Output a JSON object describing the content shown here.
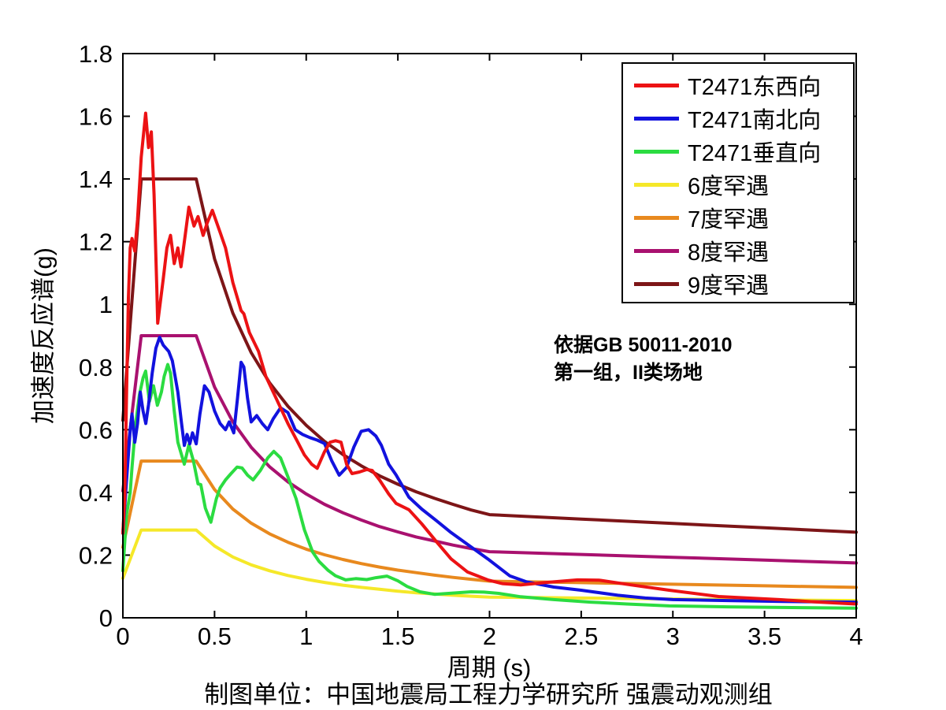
{
  "chart_data": {
    "type": "line",
    "title": "",
    "xlabel": "周期 (s)",
    "ylabel": "加速度反应谱(g)",
    "caption": "制图单位：中国地震局工程力学研究所 强震动观测组",
    "annotation": [
      "依据GB 50011-2010",
      "第一组，II类场地"
    ],
    "xlim": [
      0,
      4
    ],
    "ylim": [
      0,
      1.8
    ],
    "xticks": [
      "0",
      "0.5",
      "1",
      "1.5",
      "2",
      "2.5",
      "3",
      "3.5",
      "4"
    ],
    "yticks": [
      "0",
      "0.2",
      "0.4",
      "0.6",
      "0.8",
      "1",
      "1.2",
      "1.4",
      "1.6",
      "1.8"
    ],
    "grid": false,
    "legend_position": "upper right",
    "axis_color": "#000000",
    "background_color": "#ffffff",
    "series": [
      {
        "name": "T2471东西向",
        "color": "#ec1214",
        "z": 7,
        "points": [
          [
            0,
            0.27
          ],
          [
            0.01,
            0.38
          ],
          [
            0.02,
            0.72
          ],
          [
            0.03,
            1.02
          ],
          [
            0.04,
            1.18
          ],
          [
            0.05,
            1.21
          ],
          [
            0.065,
            1.17
          ],
          [
            0.08,
            1.27
          ],
          [
            0.1,
            1.47
          ],
          [
            0.124,
            1.61
          ],
          [
            0.14,
            1.5
          ],
          [
            0.155,
            1.55
          ],
          [
            0.17,
            1.35
          ],
          [
            0.185,
            1.05
          ],
          [
            0.19,
            0.94
          ],
          [
            0.22,
            1.08
          ],
          [
            0.24,
            1.18
          ],
          [
            0.26,
            1.22
          ],
          [
            0.28,
            1.13
          ],
          [
            0.3,
            1.18
          ],
          [
            0.317,
            1.12
          ],
          [
            0.34,
            1.22
          ],
          [
            0.36,
            1.31
          ],
          [
            0.388,
            1.25
          ],
          [
            0.41,
            1.28
          ],
          [
            0.438,
            1.22
          ],
          [
            0.46,
            1.26
          ],
          [
            0.488,
            1.3
          ],
          [
            0.53,
            1.23
          ],
          [
            0.56,
            1.18
          ],
          [
            0.6,
            1.07
          ],
          [
            0.645,
            0.98
          ],
          [
            0.66,
            0.97
          ],
          [
            0.69,
            0.91
          ],
          [
            0.74,
            0.85
          ],
          [
            0.78,
            0.77
          ],
          [
            0.82,
            0.72
          ],
          [
            0.86,
            0.67
          ],
          [
            0.9,
            0.62
          ],
          [
            0.95,
            0.565
          ],
          [
            0.99,
            0.52
          ],
          [
            1.03,
            0.49
          ],
          [
            1.06,
            0.477
          ],
          [
            1.1,
            0.53
          ],
          [
            1.13,
            0.56
          ],
          [
            1.16,
            0.565
          ],
          [
            1.19,
            0.56
          ],
          [
            1.22,
            0.49
          ],
          [
            1.25,
            0.46
          ],
          [
            1.29,
            0.465
          ],
          [
            1.33,
            0.473
          ],
          [
            1.36,
            0.47
          ],
          [
            1.4,
            0.44
          ],
          [
            1.45,
            0.395
          ],
          [
            1.49,
            0.365
          ],
          [
            1.56,
            0.345
          ],
          [
            1.63,
            0.3
          ],
          [
            1.71,
            0.243
          ],
          [
            1.79,
            0.188
          ],
          [
            1.88,
            0.146
          ],
          [
            1.99,
            0.121
          ],
          [
            2.07,
            0.109
          ],
          [
            2.17,
            0.105
          ],
          [
            2.31,
            0.113
          ],
          [
            2.48,
            0.121
          ],
          [
            2.6,
            0.12
          ],
          [
            2.77,
            0.105
          ],
          [
            2.98,
            0.088
          ],
          [
            3.25,
            0.068
          ],
          [
            3.58,
            0.058
          ],
          [
            3.8,
            0.05
          ],
          [
            4.0,
            0.044
          ]
        ]
      },
      {
        "name": "T2471南北向",
        "color": "#1212de",
        "z": 6,
        "points": [
          [
            0,
            0.27
          ],
          [
            0.02,
            0.44
          ],
          [
            0.04,
            0.6
          ],
          [
            0.05,
            0.65
          ],
          [
            0.065,
            0.56
          ],
          [
            0.08,
            0.62
          ],
          [
            0.095,
            0.72
          ],
          [
            0.11,
            0.66
          ],
          [
            0.125,
            0.62
          ],
          [
            0.14,
            0.68
          ],
          [
            0.16,
            0.78
          ],
          [
            0.18,
            0.86
          ],
          [
            0.2,
            0.895
          ],
          [
            0.22,
            0.87
          ],
          [
            0.25,
            0.85
          ],
          [
            0.27,
            0.82
          ],
          [
            0.3,
            0.72
          ],
          [
            0.32,
            0.62
          ],
          [
            0.335,
            0.55
          ],
          [
            0.35,
            0.585
          ],
          [
            0.365,
            0.555
          ],
          [
            0.38,
            0.59
          ],
          [
            0.4,
            0.555
          ],
          [
            0.42,
            0.65
          ],
          [
            0.445,
            0.74
          ],
          [
            0.47,
            0.72
          ],
          [
            0.5,
            0.66
          ],
          [
            0.53,
            0.62
          ],
          [
            0.56,
            0.6
          ],
          [
            0.58,
            0.625
          ],
          [
            0.605,
            0.59
          ],
          [
            0.625,
            0.7
          ],
          [
            0.645,
            0.815
          ],
          [
            0.66,
            0.8
          ],
          [
            0.68,
            0.7
          ],
          [
            0.7,
            0.625
          ],
          [
            0.73,
            0.645
          ],
          [
            0.76,
            0.62
          ],
          [
            0.79,
            0.6
          ],
          [
            0.82,
            0.635
          ],
          [
            0.86,
            0.67
          ],
          [
            0.9,
            0.655
          ],
          [
            0.94,
            0.6
          ],
          [
            0.98,
            0.585
          ],
          [
            1.02,
            0.575
          ],
          [
            1.06,
            0.567
          ],
          [
            1.1,
            0.556
          ],
          [
            1.14,
            0.5
          ],
          [
            1.18,
            0.455
          ],
          [
            1.22,
            0.48
          ],
          [
            1.26,
            0.545
          ],
          [
            1.3,
            0.595
          ],
          [
            1.34,
            0.6
          ],
          [
            1.38,
            0.58
          ],
          [
            1.41,
            0.55
          ],
          [
            1.45,
            0.49
          ],
          [
            1.49,
            0.456
          ],
          [
            1.56,
            0.385
          ],
          [
            1.63,
            0.347
          ],
          [
            1.71,
            0.31
          ],
          [
            1.79,
            0.272
          ],
          [
            1.88,
            0.234
          ],
          [
            1.99,
            0.188
          ],
          [
            2.11,
            0.134
          ],
          [
            2.2,
            0.115
          ],
          [
            2.35,
            0.098
          ],
          [
            2.5,
            0.088
          ],
          [
            2.7,
            0.072
          ],
          [
            2.85,
            0.063
          ],
          [
            3.0,
            0.058
          ],
          [
            3.3,
            0.055
          ],
          [
            3.6,
            0.052
          ],
          [
            4.0,
            0.05
          ]
        ]
      },
      {
        "name": "T2471垂直向",
        "color": "#2bdc41",
        "z": 5,
        "points": [
          [
            0,
            0.15
          ],
          [
            0.02,
            0.33
          ],
          [
            0.04,
            0.4
          ],
          [
            0.05,
            0.48
          ],
          [
            0.07,
            0.62
          ],
          [
            0.09,
            0.71
          ],
          [
            0.11,
            0.765
          ],
          [
            0.124,
            0.787
          ],
          [
            0.145,
            0.69
          ],
          [
            0.167,
            0.74
          ],
          [
            0.188,
            0.678
          ],
          [
            0.21,
            0.72
          ],
          [
            0.225,
            0.77
          ],
          [
            0.245,
            0.808
          ],
          [
            0.26,
            0.78
          ],
          [
            0.28,
            0.66
          ],
          [
            0.3,
            0.56
          ],
          [
            0.32,
            0.52
          ],
          [
            0.335,
            0.49
          ],
          [
            0.36,
            0.552
          ],
          [
            0.385,
            0.5
          ],
          [
            0.41,
            0.427
          ],
          [
            0.425,
            0.425
          ],
          [
            0.45,
            0.35
          ],
          [
            0.48,
            0.305
          ],
          [
            0.51,
            0.38
          ],
          [
            0.53,
            0.414
          ],
          [
            0.56,
            0.44
          ],
          [
            0.59,
            0.46
          ],
          [
            0.623,
            0.481
          ],
          [
            0.65,
            0.478
          ],
          [
            0.68,
            0.455
          ],
          [
            0.71,
            0.44
          ],
          [
            0.75,
            0.47
          ],
          [
            0.79,
            0.51
          ],
          [
            0.823,
            0.531
          ],
          [
            0.86,
            0.51
          ],
          [
            0.9,
            0.45
          ],
          [
            0.945,
            0.38
          ],
          [
            0.99,
            0.281
          ],
          [
            1.035,
            0.21
          ],
          [
            1.07,
            0.18
          ],
          [
            1.12,
            0.151
          ],
          [
            1.16,
            0.134
          ],
          [
            1.215,
            0.121
          ],
          [
            1.27,
            0.125
          ],
          [
            1.33,
            0.122
          ],
          [
            1.38,
            0.128
          ],
          [
            1.44,
            0.133
          ],
          [
            1.5,
            0.118
          ],
          [
            1.55,
            0.1
          ],
          [
            1.62,
            0.083
          ],
          [
            1.7,
            0.075
          ],
          [
            1.8,
            0.079
          ],
          [
            1.9,
            0.083
          ],
          [
            1.97,
            0.082
          ],
          [
            2.05,
            0.078
          ],
          [
            2.17,
            0.067
          ],
          [
            2.35,
            0.058
          ],
          [
            2.55,
            0.05
          ],
          [
            2.75,
            0.044
          ],
          [
            2.98,
            0.038
          ],
          [
            3.3,
            0.035
          ],
          [
            3.6,
            0.033
          ],
          [
            4.0,
            0.031
          ]
        ]
      },
      {
        "name": "6度罕遇",
        "color": "#f5e829",
        "z": 1,
        "points": [
          [
            0,
            0.126
          ],
          [
            0.1,
            0.28
          ],
          [
            0.4,
            0.28
          ],
          [
            0.5,
            0.229
          ],
          [
            0.6,
            0.194
          ],
          [
            0.7,
            0.169
          ],
          [
            0.8,
            0.15
          ],
          [
            0.9,
            0.135
          ],
          [
            1.0,
            0.123
          ],
          [
            1.1,
            0.113
          ],
          [
            1.2,
            0.104
          ],
          [
            1.3,
            0.097
          ],
          [
            1.4,
            0.091
          ],
          [
            1.5,
            0.085
          ],
          [
            1.6,
            0.08
          ],
          [
            1.7,
            0.076
          ],
          [
            1.8,
            0.072
          ],
          [
            1.9,
            0.069
          ],
          [
            2.0,
            0.066
          ],
          [
            2.5,
            0.063
          ],
          [
            3.0,
            0.06
          ],
          [
            3.5,
            0.057
          ],
          [
            4.0,
            0.055
          ]
        ]
      },
      {
        "name": "7度罕遇",
        "color": "#e8891e",
        "z": 2,
        "points": [
          [
            0,
            0.225
          ],
          [
            0.1,
            0.5
          ],
          [
            0.4,
            0.5
          ],
          [
            0.5,
            0.409
          ],
          [
            0.6,
            0.347
          ],
          [
            0.7,
            0.302
          ],
          [
            0.8,
            0.268
          ],
          [
            0.9,
            0.241
          ],
          [
            1.0,
            0.219
          ],
          [
            1.1,
            0.201
          ],
          [
            1.2,
            0.186
          ],
          [
            1.3,
            0.173
          ],
          [
            1.4,
            0.162
          ],
          [
            1.5,
            0.152
          ],
          [
            1.6,
            0.144
          ],
          [
            1.7,
            0.136
          ],
          [
            1.8,
            0.129
          ],
          [
            1.9,
            0.123
          ],
          [
            2.0,
            0.117
          ],
          [
            2.5,
            0.112
          ],
          [
            3.0,
            0.107
          ],
          [
            3.5,
            0.102
          ],
          [
            4.0,
            0.097
          ]
        ]
      },
      {
        "name": "8度罕遇",
        "color": "#a9116f",
        "z": 3,
        "points": [
          [
            0,
            0.405
          ],
          [
            0.1,
            0.9
          ],
          [
            0.4,
            0.9
          ],
          [
            0.5,
            0.736
          ],
          [
            0.6,
            0.625
          ],
          [
            0.7,
            0.544
          ],
          [
            0.8,
            0.482
          ],
          [
            0.9,
            0.434
          ],
          [
            1.0,
            0.395
          ],
          [
            1.1,
            0.362
          ],
          [
            1.2,
            0.335
          ],
          [
            1.3,
            0.312
          ],
          [
            1.4,
            0.291
          ],
          [
            1.5,
            0.274
          ],
          [
            1.6,
            0.258
          ],
          [
            1.7,
            0.245
          ],
          [
            1.8,
            0.232
          ],
          [
            1.9,
            0.221
          ],
          [
            2.0,
            0.211
          ],
          [
            2.5,
            0.202
          ],
          [
            3.0,
            0.193
          ],
          [
            3.5,
            0.184
          ],
          [
            4.0,
            0.175
          ]
        ]
      },
      {
        "name": "9度罕遇",
        "color": "#7d1517",
        "z": 4,
        "points": [
          [
            0,
            0.63
          ],
          [
            0.1,
            1.4
          ],
          [
            0.4,
            1.4
          ],
          [
            0.5,
            1.145
          ],
          [
            0.6,
            0.972
          ],
          [
            0.7,
            0.846
          ],
          [
            0.8,
            0.75
          ],
          [
            0.9,
            0.675
          ],
          [
            1.0,
            0.614
          ],
          [
            1.1,
            0.563
          ],
          [
            1.2,
            0.521
          ],
          [
            1.3,
            0.485
          ],
          [
            1.4,
            0.453
          ],
          [
            1.5,
            0.426
          ],
          [
            1.6,
            0.402
          ],
          [
            1.7,
            0.381
          ],
          [
            1.8,
            0.362
          ],
          [
            1.9,
            0.344
          ],
          [
            2.0,
            0.329
          ],
          [
            2.5,
            0.315
          ],
          [
            3.0,
            0.301
          ],
          [
            3.5,
            0.287
          ],
          [
            4.0,
            0.273
          ]
        ]
      }
    ]
  }
}
